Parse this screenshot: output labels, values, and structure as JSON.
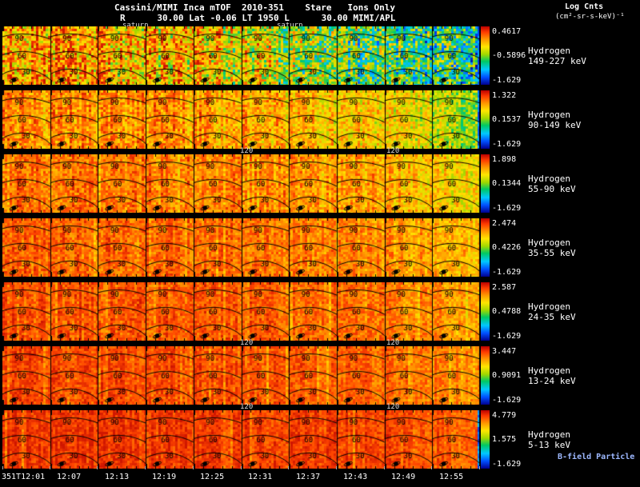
{
  "header": {
    "title": "Cassini/MIMI Inca mTOF  2010-351    Stare   Ions Only",
    "subtitle": "R      30.00 Lat -0.06 LT 1950 L      30.00 MIMI/APL",
    "legend_title": "Log Cnts",
    "legend_units": "(cm²-sr-s-keV)⁻¹"
  },
  "annotations": {
    "saturn_left": "saturn",
    "saturn_right": "saturn",
    "tick_120": "120",
    "bfield": "B-field Particle Flow"
  },
  "chart_data": {
    "type": "heatmap",
    "title": "Cassini/MIMI Inca mTOF 2010-351 Stare Ions Only",
    "colorbar": {
      "title": "Log Cnts",
      "units": "(cm²-sr-s-keV)⁻¹",
      "palette_top_to_bottom": [
        "#bb0000",
        "#ff3c00",
        "#ff9600",
        "#ffe600",
        "#a0d800",
        "#00c864",
        "#00c8ff",
        "#0050ff",
        "#000090"
      ]
    },
    "time_ticks": [
      "351T12:01",
      "12:07",
      "12:13",
      "12:19",
      "12:25",
      "12:31",
      "12:37",
      "12:43",
      "12:49",
      "12:55"
    ],
    "contour_labels": [
      "90",
      "60",
      "30"
    ],
    "panels_per_row": 10,
    "rows": [
      {
        "species": "Hydrogen",
        "energy": "149-227 keV",
        "scale_max": "0.4617",
        "scale_mid": "-0.5896",
        "scale_min": "-1.629",
        "profile": [
          0.8,
          0.78,
          0.76,
          0.73,
          0.68,
          0.62,
          0.55,
          0.47,
          0.42,
          0.38
        ],
        "noise": 0.16,
        "right_gap": true
      },
      {
        "species": "Hydrogen",
        "energy": "90-149 keV",
        "scale_max": "1.322",
        "scale_mid": "0.1537",
        "scale_min": "-1.629",
        "profile": [
          0.82,
          0.82,
          0.81,
          0.8,
          0.79,
          0.77,
          0.74,
          0.7,
          0.64,
          0.55
        ],
        "noise": 0.09,
        "right_gap": true
      },
      {
        "species": "Hydrogen",
        "energy": "55-90 keV",
        "scale_max": "1.898",
        "scale_mid": "0.1344",
        "scale_min": "-1.629",
        "profile": [
          0.85,
          0.85,
          0.84,
          0.84,
          0.83,
          0.82,
          0.8,
          0.77,
          0.73,
          0.66
        ],
        "noise": 0.075,
        "right_gap": false
      },
      {
        "species": "Hydrogen",
        "energy": "35-55 keV",
        "scale_max": "2.474",
        "scale_mid": "0.4226",
        "scale_min": "-1.629",
        "profile": [
          0.87,
          0.87,
          0.86,
          0.86,
          0.85,
          0.84,
          0.83,
          0.81,
          0.78,
          0.72
        ],
        "noise": 0.065,
        "right_gap": false
      },
      {
        "species": "Hydrogen",
        "energy": "24-35 keV",
        "scale_max": "2.587",
        "scale_mid": "0.4788",
        "scale_min": "-1.629",
        "profile": [
          0.885,
          0.885,
          0.88,
          0.88,
          0.87,
          0.86,
          0.85,
          0.83,
          0.8,
          0.76
        ],
        "noise": 0.06,
        "right_gap": false
      },
      {
        "species": "Hydrogen",
        "energy": "13-24 keV",
        "scale_max": "3.447",
        "scale_mid": "0.9091",
        "scale_min": "-1.629",
        "profile": [
          0.9,
          0.9,
          0.895,
          0.89,
          0.885,
          0.88,
          0.87,
          0.86,
          0.83,
          0.8
        ],
        "noise": 0.055,
        "right_gap": false
      },
      {
        "species": "Hydrogen",
        "energy": "5-13 keV",
        "scale_max": "4.779",
        "scale_mid": "1.575",
        "scale_min": "-1.629",
        "profile": [
          0.93,
          0.93,
          0.925,
          0.92,
          0.92,
          0.915,
          0.91,
          0.9,
          0.88,
          0.86
        ],
        "noise": 0.05,
        "right_gap": true
      }
    ]
  }
}
